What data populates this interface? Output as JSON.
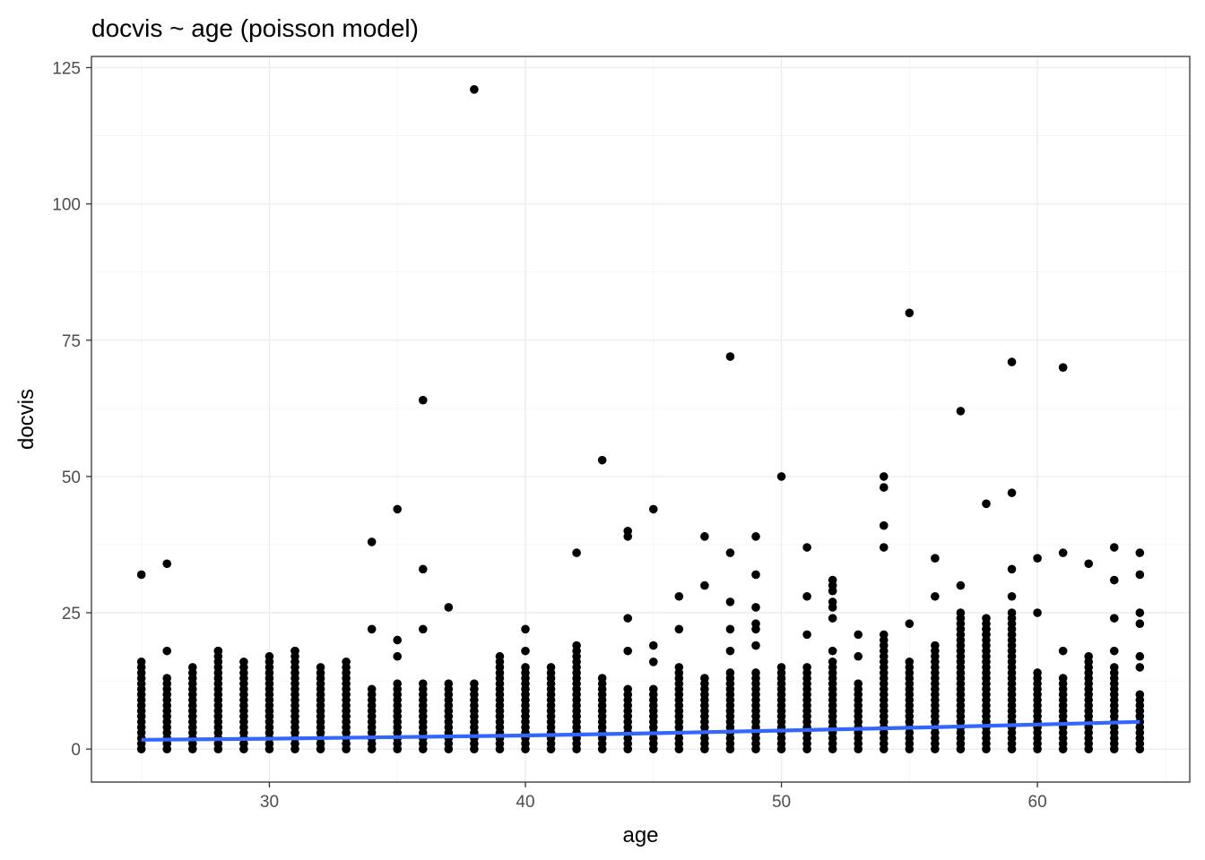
{
  "chart_data": {
    "type": "scatter",
    "title": "docvis ~ age (poisson model)",
    "xlabel": "age",
    "ylabel": "docvis",
    "xlim": [
      23.05,
      65.95
    ],
    "ylim": [
      -6.05,
      127.05
    ],
    "x_ticks": [
      30,
      40,
      50,
      60
    ],
    "y_ticks": [
      0,
      25,
      50,
      75,
      100,
      125
    ],
    "grid": true,
    "legend": "none",
    "point_color": "#000000",
    "fit_color": "#3366ff",
    "ages": [
      25,
      26,
      27,
      28,
      29,
      30,
      31,
      32,
      33,
      34,
      35,
      36,
      37,
      38,
      39,
      40,
      41,
      42,
      43,
      44,
      45,
      46,
      47,
      48,
      49,
      50,
      51,
      52,
      53,
      54,
      55,
      56,
      57,
      58,
      59,
      60,
      61,
      62,
      63,
      64
    ],
    "column_max": [
      16,
      13,
      15,
      18,
      16,
      17,
      18,
      15,
      16,
      11,
      12,
      12,
      12,
      12,
      17,
      15,
      15,
      19,
      13,
      11,
      11,
      15,
      13,
      14,
      14,
      15,
      15,
      16,
      12,
      21,
      16,
      19,
      25,
      24,
      25,
      14,
      13,
      17,
      15,
      10
    ],
    "outliers": [
      {
        "x": 25,
        "y": 32
      },
      {
        "x": 26,
        "y": 34
      },
      {
        "x": 26,
        "y": 18
      },
      {
        "x": 28,
        "y": 18
      },
      {
        "x": 31,
        "y": 18
      },
      {
        "x": 34,
        "y": 38
      },
      {
        "x": 34,
        "y": 22
      },
      {
        "x": 35,
        "y": 44
      },
      {
        "x": 35,
        "y": 20
      },
      {
        "x": 35,
        "y": 17
      },
      {
        "x": 36,
        "y": 64
      },
      {
        "x": 36,
        "y": 33
      },
      {
        "x": 36,
        "y": 22
      },
      {
        "x": 37,
        "y": 26
      },
      {
        "x": 38,
        "y": 121
      },
      {
        "x": 40,
        "y": 22
      },
      {
        "x": 40,
        "y": 18
      },
      {
        "x": 42,
        "y": 36
      },
      {
        "x": 43,
        "y": 53
      },
      {
        "x": 44,
        "y": 40
      },
      {
        "x": 44,
        "y": 39
      },
      {
        "x": 44,
        "y": 24
      },
      {
        "x": 44,
        "y": 18
      },
      {
        "x": 45,
        "y": 44
      },
      {
        "x": 45,
        "y": 19
      },
      {
        "x": 45,
        "y": 16
      },
      {
        "x": 46,
        "y": 28
      },
      {
        "x": 46,
        "y": 22
      },
      {
        "x": 47,
        "y": 39
      },
      {
        "x": 47,
        "y": 30
      },
      {
        "x": 48,
        "y": 72
      },
      {
        "x": 48,
        "y": 36
      },
      {
        "x": 48,
        "y": 27
      },
      {
        "x": 48,
        "y": 22
      },
      {
        "x": 48,
        "y": 18
      },
      {
        "x": 49,
        "y": 39
      },
      {
        "x": 49,
        "y": 32
      },
      {
        "x": 49,
        "y": 26
      },
      {
        "x": 49,
        "y": 23
      },
      {
        "x": 49,
        "y": 22
      },
      {
        "x": 49,
        "y": 19
      },
      {
        "x": 50,
        "y": 50
      },
      {
        "x": 51,
        "y": 37
      },
      {
        "x": 51,
        "y": 28
      },
      {
        "x": 51,
        "y": 21
      },
      {
        "x": 52,
        "y": 31
      },
      {
        "x": 52,
        "y": 30
      },
      {
        "x": 52,
        "y": 29
      },
      {
        "x": 52,
        "y": 27
      },
      {
        "x": 52,
        "y": 26
      },
      {
        "x": 52,
        "y": 24
      },
      {
        "x": 52,
        "y": 18
      },
      {
        "x": 53,
        "y": 21
      },
      {
        "x": 53,
        "y": 17
      },
      {
        "x": 54,
        "y": 50
      },
      {
        "x": 54,
        "y": 48
      },
      {
        "x": 54,
        "y": 41
      },
      {
        "x": 54,
        "y": 37
      },
      {
        "x": 55,
        "y": 80
      },
      {
        "x": 55,
        "y": 23
      },
      {
        "x": 56,
        "y": 35
      },
      {
        "x": 56,
        "y": 28
      },
      {
        "x": 57,
        "y": 62
      },
      {
        "x": 57,
        "y": 30
      },
      {
        "x": 58,
        "y": 45
      },
      {
        "x": 58,
        "y": 22
      },
      {
        "x": 58,
        "y": 21
      },
      {
        "x": 59,
        "y": 71
      },
      {
        "x": 59,
        "y": 47
      },
      {
        "x": 59,
        "y": 33
      },
      {
        "x": 59,
        "y": 28
      },
      {
        "x": 59,
        "y": 21
      },
      {
        "x": 60,
        "y": 35
      },
      {
        "x": 60,
        "y": 25
      },
      {
        "x": 61,
        "y": 70
      },
      {
        "x": 61,
        "y": 36
      },
      {
        "x": 61,
        "y": 18
      },
      {
        "x": 62,
        "y": 34
      },
      {
        "x": 63,
        "y": 37
      },
      {
        "x": 63,
        "y": 31
      },
      {
        "x": 63,
        "y": 24
      },
      {
        "x": 63,
        "y": 18
      },
      {
        "x": 64,
        "y": 36
      },
      {
        "x": 64,
        "y": 32
      },
      {
        "x": 64,
        "y": 25
      },
      {
        "x": 64,
        "y": 23
      },
      {
        "x": 64,
        "y": 17
      },
      {
        "x": 64,
        "y": 15
      }
    ],
    "fit": {
      "x": [
        25,
        30,
        35,
        40,
        45,
        50,
        55,
        60,
        64
      ],
      "y": [
        1.7,
        1.9,
        2.2,
        2.5,
        2.9,
        3.4,
        3.9,
        4.5,
        5.0
      ]
    }
  }
}
